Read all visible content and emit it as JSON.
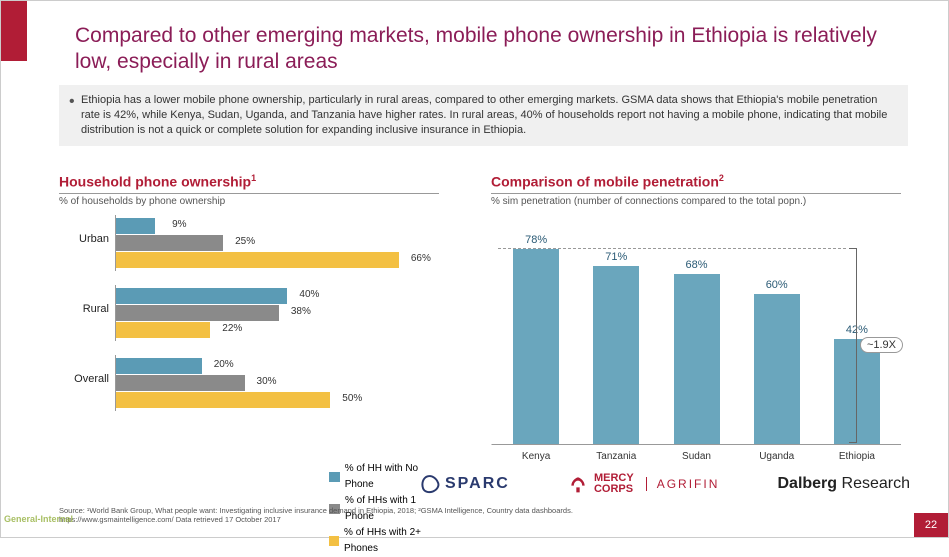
{
  "title": "Compared to other emerging markets, mobile phone ownership in Ethiopia is relatively low, especially in rural areas",
  "summary": "Ethiopia has a lower mobile phone ownership, particularly in rural areas, compared to other emerging markets. GSMA data shows that Ethiopia's mobile penetration rate is 42%, while Kenya, Sudan, Uganda, and Tanzania have higher rates. In rural areas, 40% of households report not having a mobile phone, indicating that mobile distribution is not a quick or complete solution for expanding inclusive insurance in Ethiopia.",
  "colors": {
    "accent": "#b11d36",
    "title": "#8b1d57",
    "bar_blue": "#5b9bb5",
    "bar_gray": "#8a8a8a",
    "bar_yellow": "#f3c043",
    "vbar": "#6aa6bd",
    "text": "#333333",
    "bg_summary": "#f0f0f0"
  },
  "left_chart": {
    "title": "Household phone ownership",
    "sup": "1",
    "subtitle": "% of households by phone ownership",
    "max": 70,
    "groups": [
      {
        "label": "Urban",
        "values": [
          9,
          25,
          66
        ]
      },
      {
        "label": "Rural",
        "values": [
          40,
          38,
          22
        ]
      },
      {
        "label": "Overall",
        "values": [
          20,
          30,
          50
        ]
      }
    ],
    "series": [
      {
        "label": "% of HH with No Phone",
        "color": "#5b9bb5"
      },
      {
        "label": "% of HHs with 1 Phone",
        "color": "#8a8a8a"
      },
      {
        "label": "% of HHs with 2+ Phones",
        "color": "#f3c043"
      }
    ]
  },
  "right_chart": {
    "title": "Comparison of mobile penetration",
    "sup": "2",
    "subtitle": "% sim penetration (number of connections compared to the total popn.)",
    "max": 80,
    "bar_color": "#6aa6bd",
    "data": [
      {
        "label": "Kenya",
        "value": 78
      },
      {
        "label": "Tanzania",
        "value": 71
      },
      {
        "label": "Sudan",
        "value": 68
      },
      {
        "label": "Uganda",
        "value": 60
      },
      {
        "label": "Ethiopia",
        "value": 42
      }
    ],
    "multiplier": "~1.9X"
  },
  "logos": {
    "sparc": "SPARC",
    "mercy1": "MERCY",
    "mercy2": "CORPS",
    "agrifin": "AGRIFIN",
    "dalberg1": "Dalberg",
    "dalberg2": " Research"
  },
  "source": {
    "line1": "Source: ¹World Bank Group, What people want: Investigating inclusive insurance demand in Ethiopia, 2018; ²GSMA Intelligence, Country data dashboards.",
    "line2": "https://www.gsmaintelligence.com/ Data retrieved 17 October 2017"
  },
  "page": "22",
  "watermark": "General-Internal"
}
